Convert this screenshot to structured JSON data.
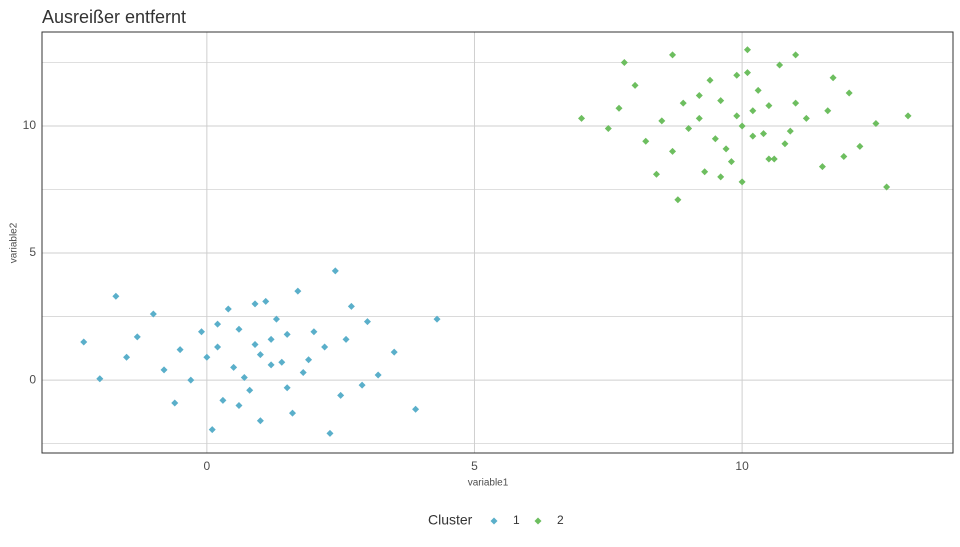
{
  "chart_data": {
    "type": "scatter",
    "title": "Ausreißer entfernt",
    "x_label": "variable1",
    "y_label": "variable2",
    "legend_title": "Cluster",
    "legend_position": "bottom",
    "grid": true,
    "xlim": [
      -3.08,
      13.94
    ],
    "ylim": [
      -2.87,
      13.7
    ],
    "xticks": [
      0,
      5,
      10
    ],
    "yticks": [
      0,
      5,
      10
    ],
    "y_minor_grid": [
      -2.5,
      2.5,
      7.5,
      12.5
    ],
    "series": [
      {
        "name": "1",
        "color": "#5aafca",
        "x": [
          -2.3,
          -2.0,
          4.3,
          3.9,
          2.4,
          2.3,
          0.1,
          -1.7,
          1.0,
          0.5,
          1.5,
          0.2,
          1.8,
          0.8,
          -0.5,
          2.7,
          1.2,
          0.0,
          -1.0,
          3.2,
          0.6,
          1.4,
          2.0,
          -0.3,
          1.1,
          0.9,
          2.5,
          -0.8,
          1.6,
          0.4,
          3.5,
          -1.3,
          0.7,
          1.3,
          2.2,
          0.3,
          1.9,
          -0.1,
          2.9,
          1.7,
          0.6,
          1.0,
          -0.6,
          2.6,
          1.2,
          0.2,
          3.0,
          0.9,
          1.5,
          -1.5
        ],
        "values": [
          1.5,
          0.05,
          2.4,
          -1.15,
          4.3,
          -2.1,
          -1.95,
          3.3,
          1.0,
          0.5,
          1.8,
          2.2,
          0.3,
          -0.4,
          1.2,
          2.9,
          1.6,
          0.9,
          2.6,
          0.2,
          -1.0,
          0.7,
          1.9,
          0.0,
          3.1,
          1.4,
          -0.6,
          0.4,
          -1.3,
          2.8,
          1.1,
          1.7,
          0.1,
          2.4,
          1.3,
          -0.8,
          0.8,
          1.9,
          -0.2,
          3.5,
          2.0,
          -1.6,
          -0.9,
          1.6,
          0.6,
          1.3,
          2.3,
          3.0,
          -0.3,
          0.9
        ]
      },
      {
        "name": "2",
        "color": "#6dbe5f",
        "x": [
          7.0,
          13.1,
          8.8,
          12.7,
          10.1,
          8.7,
          7.8,
          11.0,
          10.0,
          9.5,
          10.5,
          9.2,
          10.8,
          9.8,
          8.5,
          11.7,
          10.2,
          9.0,
          8.0,
          12.2,
          9.6,
          10.4,
          11.0,
          8.7,
          10.1,
          9.9,
          11.5,
          8.2,
          10.6,
          9.4,
          12.5,
          7.7,
          9.7,
          10.3,
          11.2,
          9.3,
          10.9,
          8.9,
          11.9,
          10.7,
          9.6,
          10.0,
          8.4,
          11.6,
          10.2,
          9.2,
          12.0,
          9.9,
          10.5,
          7.5
        ],
        "values": [
          10.3,
          10.4,
          7.1,
          7.6,
          13.0,
          12.8,
          12.5,
          12.8,
          10.0,
          9.5,
          10.8,
          11.2,
          9.3,
          8.6,
          10.2,
          11.9,
          10.6,
          9.9,
          11.6,
          9.2,
          8.0,
          9.7,
          10.9,
          9.0,
          12.1,
          10.4,
          8.4,
          9.4,
          8.7,
          11.8,
          10.1,
          10.7,
          9.1,
          11.4,
          10.3,
          8.2,
          9.8,
          10.9,
          8.8,
          12.4,
          11.0,
          7.8,
          8.1,
          10.6,
          9.6,
          10.3,
          11.3,
          12.0,
          8.7,
          9.9
        ]
      }
    ]
  }
}
